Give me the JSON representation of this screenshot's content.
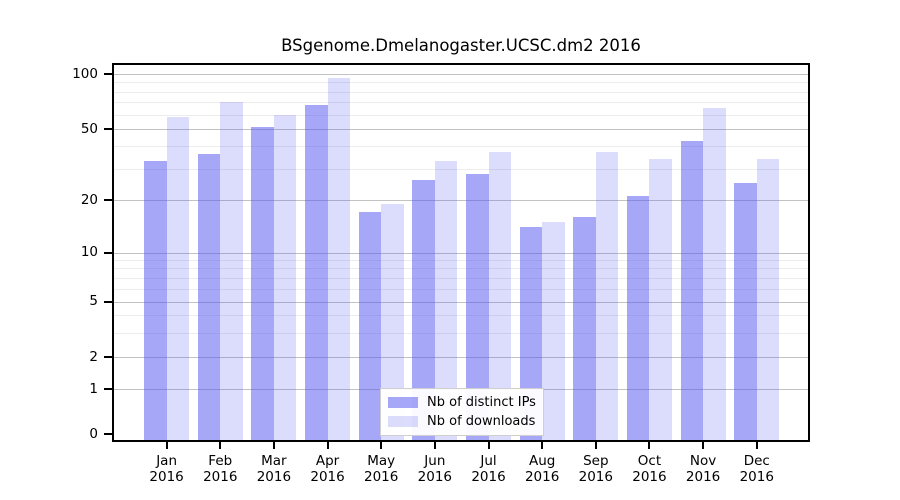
{
  "chart_data": {
    "type": "bar",
    "title": "BSgenome.Dmelanogaster.UCSC.dm2 2016",
    "categories": [
      "Jan",
      "Feb",
      "Mar",
      "Apr",
      "May",
      "Jun",
      "Jul",
      "Aug",
      "Sep",
      "Oct",
      "Nov",
      "Dec"
    ],
    "category_year": "2016",
    "series": [
      {
        "name": "Nb of distinct IPs",
        "color": "#5050f0",
        "alpha": 0.5,
        "values": [
          33,
          36,
          51,
          68,
          17,
          26,
          28,
          14,
          16,
          21,
          43,
          25
        ]
      },
      {
        "name": "Nb of downloads",
        "color": "#5050f0",
        "alpha": 0.2,
        "values": [
          58,
          70,
          60,
          95,
          19,
          33,
          37,
          15,
          37,
          34,
          65,
          34
        ]
      }
    ],
    "y_axis": {
      "scale": "log-like",
      "range": [
        0,
        100
      ],
      "tick_values": [
        0,
        1,
        2,
        5,
        10,
        20,
        50,
        100
      ],
      "tick_labels": [
        "0",
        "1",
        "2",
        "5",
        "10",
        "20",
        "50",
        "100"
      ],
      "minor_gridlines": [
        3,
        4,
        6,
        7,
        8,
        9,
        30,
        40,
        60,
        70,
        80,
        90
      ]
    },
    "legend": {
      "position": "bottom-center"
    },
    "grid": "horizontal",
    "colors": {
      "major_grid": "#c2c2c2",
      "minor_grid": "#ececec",
      "axis": "#000000"
    }
  }
}
